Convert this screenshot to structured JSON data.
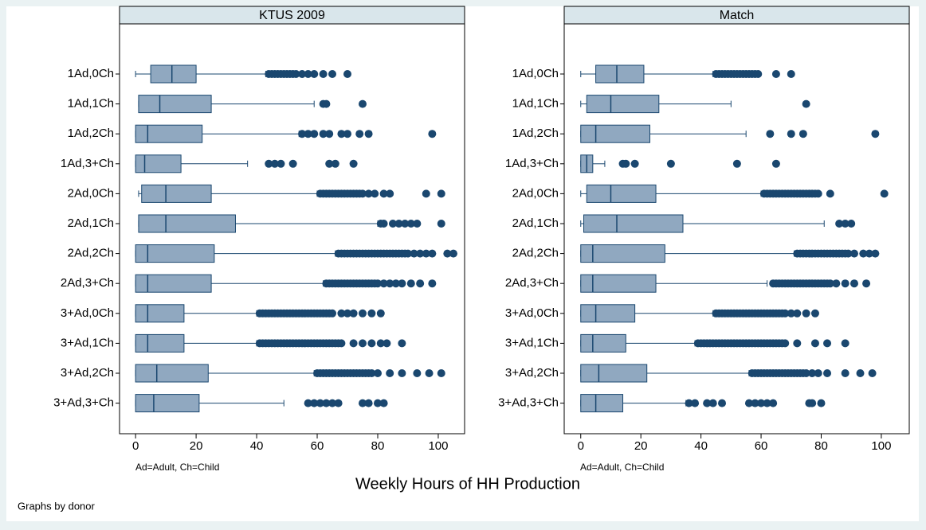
{
  "chart_data": [
    {
      "type": "box",
      "title": "KTUS 2009",
      "categories": [
        "1Ad,0Ch",
        "1Ad,1Ch",
        "1Ad,2Ch",
        "1Ad,3+Ch",
        "2Ad,0Ch",
        "2Ad,1Ch",
        "2Ad,2Ch",
        "2Ad,3+Ch",
        "3+Ad,0Ch",
        "3+Ad,1Ch",
        "3+Ad,2Ch",
        "3+Ad,3+Ch"
      ],
      "min": [
        0,
        1,
        0,
        0,
        1,
        1,
        0,
        0,
        0,
        0,
        0,
        0
      ],
      "q1": [
        5,
        1,
        0,
        0,
        2,
        1,
        0,
        0,
        0,
        0,
        0,
        0
      ],
      "median": [
        12,
        8,
        4,
        3,
        10,
        10,
        4,
        4,
        4,
        4,
        7,
        6
      ],
      "q3": [
        20,
        25,
        22,
        15,
        25,
        33,
        26,
        25,
        16,
        16,
        24,
        21
      ],
      "max": [
        43,
        59,
        54,
        37,
        60,
        80,
        66,
        62,
        40,
        40,
        59,
        49
      ],
      "outliers": [
        [
          44,
          45,
          46,
          47,
          48,
          49,
          50,
          51,
          52,
          53,
          55,
          57,
          59,
          62,
          65,
          70
        ],
        [
          62,
          63,
          75
        ],
        [
          55,
          57,
          59,
          62,
          64,
          68,
          70,
          74,
          77,
          98
        ],
        [
          44,
          46,
          48,
          52,
          64,
          66,
          72
        ],
        [
          61,
          62,
          63,
          64,
          65,
          66,
          67,
          68,
          69,
          70,
          71,
          72,
          73,
          74,
          75,
          77,
          79,
          82,
          84,
          96,
          101
        ],
        [
          81,
          82,
          85,
          87,
          89,
          91,
          93,
          101
        ],
        [
          67,
          68,
          69,
          70,
          71,
          72,
          73,
          74,
          75,
          76,
          77,
          78,
          79,
          80,
          81,
          82,
          83,
          84,
          85,
          86,
          87,
          88,
          89,
          90,
          92,
          94,
          96,
          98,
          103,
          105
        ],
        [
          63,
          64,
          65,
          66,
          67,
          68,
          69,
          70,
          71,
          72,
          73,
          74,
          75,
          76,
          77,
          78,
          79,
          80,
          82,
          84,
          86,
          88,
          91,
          94,
          98
        ],
        [
          41,
          42,
          43,
          44,
          45,
          46,
          47,
          48,
          49,
          50,
          51,
          52,
          53,
          54,
          55,
          56,
          57,
          58,
          59,
          60,
          61,
          62,
          63,
          64,
          65,
          68,
          70,
          72,
          75,
          78,
          81
        ],
        [
          41,
          42,
          43,
          44,
          45,
          46,
          47,
          48,
          49,
          50,
          51,
          52,
          53,
          54,
          55,
          56,
          57,
          58,
          59,
          60,
          61,
          62,
          63,
          64,
          65,
          66,
          67,
          68,
          72,
          75,
          78,
          81,
          83,
          88
        ],
        [
          60,
          61,
          62,
          63,
          64,
          65,
          66,
          67,
          68,
          69,
          70,
          71,
          72,
          73,
          74,
          75,
          76,
          77,
          78,
          80,
          84,
          88,
          93,
          97,
          101
        ],
        [
          57,
          59,
          61,
          63,
          65,
          67,
          75,
          77,
          80,
          82
        ]
      ],
      "color": "#90a8c0",
      "edge": "#1a476f",
      "xlim": [
        -5.3,
        108.7
      ],
      "xticks": [
        0,
        20,
        40,
        60,
        80,
        100
      ]
    },
    {
      "type": "box",
      "title": "Match",
      "categories": [
        "1Ad,0Ch",
        "1Ad,1Ch",
        "1Ad,2Ch",
        "1Ad,3+Ch",
        "2Ad,0Ch",
        "2Ad,1Ch",
        "2Ad,2Ch",
        "2Ad,3+Ch",
        "3+Ad,0Ch",
        "3+Ad,1Ch",
        "3+Ad,2Ch",
        "3+Ad,3+Ch"
      ],
      "min": [
        0,
        0,
        0,
        0,
        0,
        0,
        0,
        0,
        0,
        0,
        0,
        0
      ],
      "q1": [
        5,
        2,
        0,
        0,
        2,
        1,
        0,
        0,
        0,
        0,
        0,
        0
      ],
      "median": [
        12,
        10,
        5,
        2,
        10,
        12,
        4,
        4,
        5,
        4,
        6,
        5
      ],
      "q3": [
        21,
        26,
        23,
        4,
        25,
        34,
        28,
        25,
        18,
        15,
        22,
        14
      ],
      "max": [
        44,
        50,
        55,
        8,
        60,
        81,
        71,
        62,
        44,
        38,
        56,
        35
      ],
      "outliers": [
        [
          45,
          46,
          47,
          48,
          49,
          50,
          51,
          52,
          53,
          54,
          55,
          56,
          57,
          58,
          59,
          65,
          70
        ],
        [
          75
        ],
        [
          63,
          70,
          74,
          98
        ],
        [
          14,
          15,
          18,
          30,
          52,
          65
        ],
        [
          61,
          62,
          63,
          64,
          65,
          66,
          67,
          68,
          69,
          70,
          71,
          72,
          73,
          74,
          75,
          76,
          77,
          78,
          79,
          83,
          101
        ],
        [
          86,
          88,
          90
        ],
        [
          72,
          73,
          74,
          75,
          76,
          77,
          78,
          79,
          80,
          81,
          82,
          83,
          84,
          85,
          86,
          87,
          88,
          89,
          91,
          94,
          96,
          98
        ],
        [
          64,
          65,
          66,
          67,
          68,
          69,
          70,
          71,
          72,
          73,
          74,
          75,
          76,
          77,
          78,
          79,
          80,
          81,
          82,
          83,
          85,
          88,
          91,
          95
        ],
        [
          45,
          46,
          47,
          48,
          49,
          50,
          51,
          52,
          53,
          54,
          55,
          56,
          57,
          58,
          59,
          60,
          61,
          62,
          63,
          64,
          65,
          66,
          67,
          68,
          70,
          72,
          75,
          78
        ],
        [
          39,
          40,
          41,
          42,
          43,
          44,
          45,
          46,
          47,
          48,
          49,
          50,
          51,
          52,
          53,
          54,
          55,
          56,
          57,
          58,
          59,
          60,
          61,
          62,
          63,
          64,
          65,
          66,
          67,
          68,
          72,
          78,
          82,
          88
        ],
        [
          57,
          58,
          59,
          60,
          61,
          62,
          63,
          64,
          65,
          66,
          67,
          68,
          69,
          70,
          71,
          72,
          73,
          74,
          75,
          77,
          79,
          82,
          88,
          93,
          97
        ],
        [
          36,
          38,
          42,
          44,
          47,
          56,
          58,
          60,
          62,
          64,
          76,
          77,
          80
        ]
      ],
      "color": "#90a8c0",
      "edge": "#1a476f",
      "xlim": [
        -5.5,
        109.3
      ],
      "xticks": [
        0,
        20,
        40,
        60,
        80,
        100
      ]
    }
  ],
  "note": "Ad=Adult, Ch=Child",
  "xlabel": "Weekly Hours of HH Production",
  "caption": "Graphs by donor"
}
